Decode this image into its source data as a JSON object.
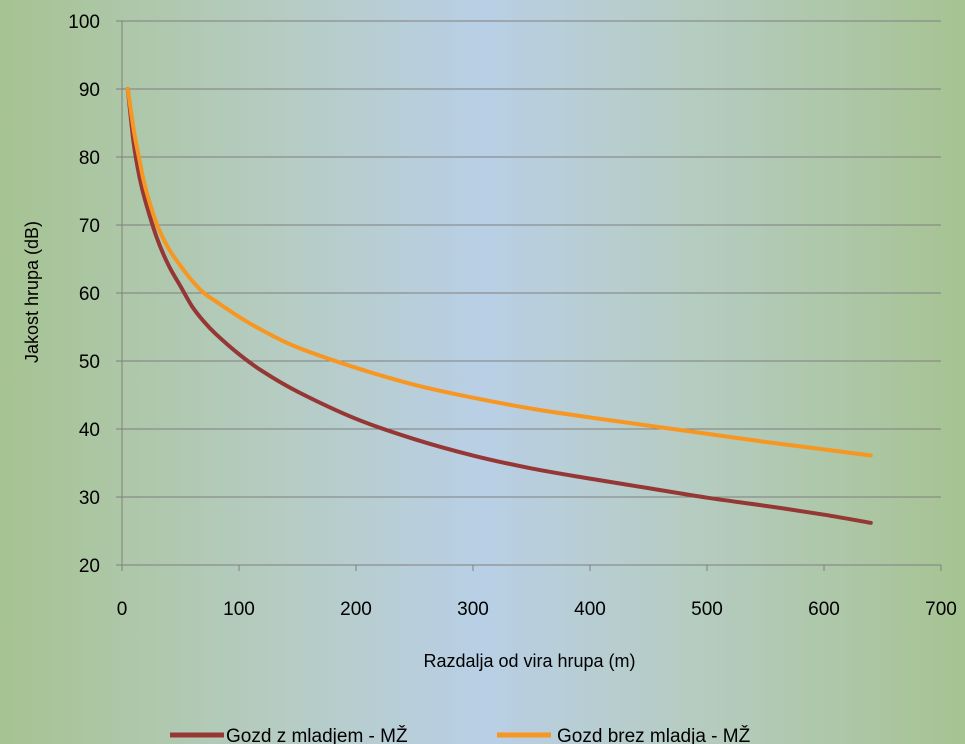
{
  "chart_data": {
    "type": "line",
    "title": "",
    "xlabel": "Razdalja od vira hrupa (m)",
    "ylabel": "Jakost hrupa (dB)",
    "xlim": [
      0,
      700
    ],
    "ylim": [
      20,
      100
    ],
    "xticks": [
      0,
      100,
      200,
      300,
      400,
      500,
      600,
      700
    ],
    "yticks": [
      20,
      30,
      40,
      50,
      60,
      70,
      80,
      90,
      100
    ],
    "grid": "horizontal",
    "legend_position": "bottom",
    "series": [
      {
        "name": "Gozd z mladjem - MŽ",
        "color": "#953735",
        "x": [
          5,
          10,
          15,
          20,
          30,
          40,
          50,
          60,
          70,
          80,
          100,
          120,
          150,
          200,
          250,
          300,
          350,
          400,
          450,
          500,
          550,
          600,
          640
        ],
        "y": [
          90,
          82,
          77,
          73.5,
          68,
          64,
          61,
          58,
          55.8,
          54,
          51,
          48.5,
          45.5,
          41.5,
          38.5,
          36.1,
          34.2,
          32.7,
          31.3,
          29.9,
          28.7,
          27.4,
          26.2
        ]
      },
      {
        "name": "Gozd brez mladja - MŽ",
        "color": "#f79620",
        "x": [
          5,
          10,
          15,
          20,
          30,
          40,
          50,
          60,
          70,
          80,
          100,
          120,
          150,
          200,
          250,
          300,
          350,
          400,
          450,
          500,
          550,
          600,
          640
        ],
        "y": [
          90,
          84,
          79.5,
          75.5,
          70,
          66.5,
          64,
          61.8,
          60,
          58.8,
          56.5,
          54.5,
          52,
          49,
          46.5,
          44.6,
          43,
          41.7,
          40.5,
          39.3,
          38.1,
          37,
          36.1
        ]
      }
    ]
  }
}
